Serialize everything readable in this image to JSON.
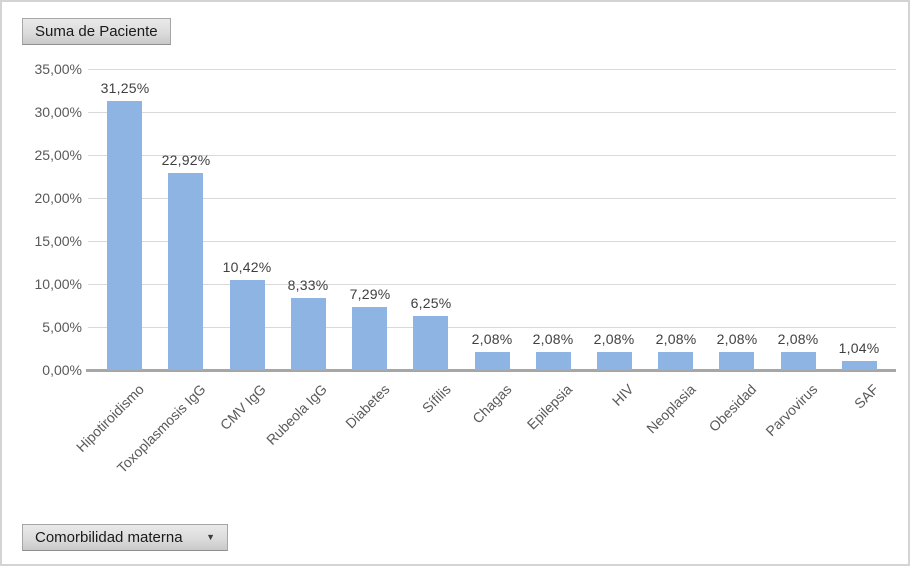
{
  "window": {
    "background": "#FFFFFF",
    "border_color": "#D4D4D4"
  },
  "pivot_field_buttons": {
    "value_button": {
      "label": "Suma de Paciente"
    },
    "axis_button": {
      "label": "Comorbilidad materna",
      "dropdown_icon": "▼"
    }
  },
  "chart_data": {
    "type": "bar",
    "title": "",
    "xlabel": "",
    "ylabel": "",
    "categories": [
      "Hipotiroidismo",
      "Toxoplasmosis IgG",
      "CMV IgG",
      "Rubeola IgG",
      "Diabetes",
      "Sífilis",
      "Chagas",
      "Epilepsia",
      "HIV",
      "Neoplasia",
      "Obesidad",
      "Parvovirus",
      "SAF"
    ],
    "values": [
      31.25,
      22.92,
      10.42,
      8.33,
      7.29,
      6.25,
      2.08,
      2.08,
      2.08,
      2.08,
      2.08,
      2.08,
      1.04
    ],
    "data_labels": [
      "31,25%",
      "22,92%",
      "10,42%",
      "8,33%",
      "7,29%",
      "6,25%",
      "2,08%",
      "2,08%",
      "2,08%",
      "2,08%",
      "2,08%",
      "2,08%",
      "1,04%"
    ],
    "ylim": [
      0,
      35
    ],
    "y_tick_step": 5,
    "y_tick_labels": [
      "0,00%",
      "5,00%",
      "10,00%",
      "15,00%",
      "20,00%",
      "25,00%",
      "30,00%",
      "35,00%"
    ],
    "grid": true,
    "legend": "none",
    "colors": {
      "bar_fill": "#8DB4E2",
      "gridline": "#D9D9D9",
      "axis_line": "#A6A6A6",
      "tick_label": "#595959",
      "category_label": "#595959",
      "data_label": "#404040",
      "button_text": "#1A1A1A"
    }
  }
}
